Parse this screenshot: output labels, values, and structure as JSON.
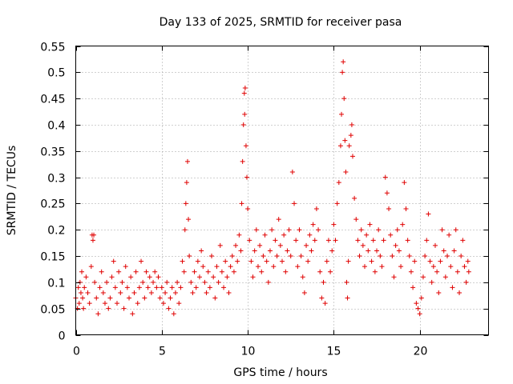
{
  "chart_data": {
    "type": "scatter",
    "title": "Day 133 of 2025, SRMTID for receiver pasa",
    "xlabel": "GPS time / hours",
    "ylabel": "SRMTID / TECUs",
    "xlim": [
      0,
      24
    ],
    "ylim": [
      0,
      0.55
    ],
    "xticks": [
      0,
      5,
      10,
      15,
      20
    ],
    "xtick_labels": [
      "0",
      "5",
      "10",
      "15",
      "20"
    ],
    "yticks": [
      0,
      0.05,
      0.1,
      0.15,
      0.2,
      0.25,
      0.3,
      0.35,
      0.4,
      0.45,
      0.5,
      0.55
    ],
    "ytick_labels": [
      "0",
      "0.05",
      "0.1",
      "0.15",
      "0.2",
      "0.25",
      "0.3",
      "0.35",
      "0.4",
      "0.45",
      "0.5",
      "0.55"
    ],
    "grid": true,
    "marker": "+",
    "series_color": "#e00000",
    "series": [
      {
        "name": "SRMTID",
        "points": [
          [
            0.0,
            0.07
          ],
          [
            0.1,
            0.05
          ],
          [
            0.15,
            0.09
          ],
          [
            0.2,
            0.06
          ],
          [
            0.25,
            0.1
          ],
          [
            0.3,
            0.08
          ],
          [
            0.35,
            0.12
          ],
          [
            0.4,
            0.07
          ],
          [
            0.45,
            0.05
          ],
          [
            0.5,
            0.09
          ],
          [
            0.6,
            0.11
          ],
          [
            0.7,
            0.08
          ],
          [
            0.8,
            0.06
          ],
          [
            0.9,
            0.13
          ],
          [
            0.95,
            0.19
          ],
          [
            1.0,
            0.18
          ],
          [
            1.05,
            0.19
          ],
          [
            1.1,
            0.1
          ],
          [
            1.2,
            0.07
          ],
          [
            1.3,
            0.04
          ],
          [
            1.4,
            0.09
          ],
          [
            1.5,
            0.12
          ],
          [
            1.6,
            0.08
          ],
          [
            1.7,
            0.06
          ],
          [
            1.8,
            0.1
          ],
          [
            1.9,
            0.05
          ],
          [
            2.0,
            0.07
          ],
          [
            2.1,
            0.11
          ],
          [
            2.2,
            0.14
          ],
          [
            2.3,
            0.09
          ],
          [
            2.4,
            0.06
          ],
          [
            2.5,
            0.12
          ],
          [
            2.6,
            0.08
          ],
          [
            2.7,
            0.1
          ],
          [
            2.8,
            0.05
          ],
          [
            2.9,
            0.13
          ],
          [
            3.0,
            0.09
          ],
          [
            3.1,
            0.07
          ],
          [
            3.2,
            0.11
          ],
          [
            3.3,
            0.04
          ],
          [
            3.4,
            0.08
          ],
          [
            3.5,
            0.12
          ],
          [
            3.6,
            0.06
          ],
          [
            3.7,
            0.09
          ],
          [
            3.8,
            0.14
          ],
          [
            3.9,
            0.1
          ],
          [
            4.0,
            0.07
          ],
          [
            4.1,
            0.12
          ],
          [
            4.2,
            0.09
          ],
          [
            4.3,
            0.11
          ],
          [
            4.4,
            0.08
          ],
          [
            4.5,
            0.1
          ],
          [
            4.6,
            0.12
          ],
          [
            4.7,
            0.09
          ],
          [
            4.8,
            0.11
          ],
          [
            4.9,
            0.07
          ],
          [
            5.0,
            0.09
          ],
          [
            5.1,
            0.06
          ],
          [
            5.2,
            0.08
          ],
          [
            5.3,
            0.1
          ],
          [
            5.4,
            0.05
          ],
          [
            5.5,
            0.07
          ],
          [
            5.6,
            0.09
          ],
          [
            5.7,
            0.04
          ],
          [
            5.8,
            0.08
          ],
          [
            5.9,
            0.1
          ],
          [
            6.0,
            0.06
          ],
          [
            6.1,
            0.09
          ],
          [
            6.2,
            0.14
          ],
          [
            6.3,
            0.12
          ],
          [
            6.35,
            0.2
          ],
          [
            6.4,
            0.25
          ],
          [
            6.45,
            0.29
          ],
          [
            6.5,
            0.33
          ],
          [
            6.55,
            0.22
          ],
          [
            6.6,
            0.15
          ],
          [
            6.7,
            0.1
          ],
          [
            6.8,
            0.08
          ],
          [
            6.9,
            0.12
          ],
          [
            7.0,
            0.09
          ],
          [
            7.1,
            0.14
          ],
          [
            7.2,
            0.11
          ],
          [
            7.3,
            0.16
          ],
          [
            7.4,
            0.13
          ],
          [
            7.5,
            0.1
          ],
          [
            7.6,
            0.08
          ],
          [
            7.7,
            0.12
          ],
          [
            7.8,
            0.09
          ],
          [
            7.9,
            0.15
          ],
          [
            8.0,
            0.11
          ],
          [
            8.1,
            0.07
          ],
          [
            8.2,
            0.13
          ],
          [
            8.3,
            0.1
          ],
          [
            8.4,
            0.17
          ],
          [
            8.5,
            0.12
          ],
          [
            8.6,
            0.09
          ],
          [
            8.7,
            0.14
          ],
          [
            8.8,
            0.11
          ],
          [
            8.9,
            0.08
          ],
          [
            9.0,
            0.13
          ],
          [
            9.1,
            0.15
          ],
          [
            9.2,
            0.12
          ],
          [
            9.3,
            0.17
          ],
          [
            9.4,
            0.14
          ],
          [
            9.5,
            0.19
          ],
          [
            9.6,
            0.16
          ],
          [
            9.65,
            0.25
          ],
          [
            9.7,
            0.33
          ],
          [
            9.75,
            0.4
          ],
          [
            9.8,
            0.46
          ],
          [
            9.82,
            0.42
          ],
          [
            9.85,
            0.47
          ],
          [
            9.9,
            0.36
          ],
          [
            9.95,
            0.3
          ],
          [
            10.0,
            0.24
          ],
          [
            10.1,
            0.18
          ],
          [
            10.2,
            0.14
          ],
          [
            10.3,
            0.11
          ],
          [
            10.4,
            0.16
          ],
          [
            10.5,
            0.2
          ],
          [
            10.6,
            0.13
          ],
          [
            10.7,
            0.17
          ],
          [
            10.8,
            0.12
          ],
          [
            10.9,
            0.15
          ],
          [
            11.0,
            0.19
          ],
          [
            11.1,
            0.14
          ],
          [
            11.2,
            0.1
          ],
          [
            11.3,
            0.16
          ],
          [
            11.4,
            0.2
          ],
          [
            11.5,
            0.13
          ],
          [
            11.6,
            0.18
          ],
          [
            11.7,
            0.15
          ],
          [
            11.8,
            0.22
          ],
          [
            11.9,
            0.17
          ],
          [
            12.0,
            0.14
          ],
          [
            12.1,
            0.19
          ],
          [
            12.2,
            0.12
          ],
          [
            12.3,
            0.16
          ],
          [
            12.4,
            0.2
          ],
          [
            12.5,
            0.15
          ],
          [
            12.6,
            0.31
          ],
          [
            12.7,
            0.25
          ],
          [
            12.8,
            0.18
          ],
          [
            12.9,
            0.13
          ],
          [
            13.0,
            0.2
          ],
          [
            13.1,
            0.15
          ],
          [
            13.2,
            0.11
          ],
          [
            13.3,
            0.08
          ],
          [
            13.4,
            0.17
          ],
          [
            13.5,
            0.14
          ],
          [
            13.6,
            0.19
          ],
          [
            13.7,
            0.16
          ],
          [
            13.8,
            0.21
          ],
          [
            13.9,
            0.18
          ],
          [
            14.0,
            0.24
          ],
          [
            14.1,
            0.2
          ],
          [
            14.2,
            0.12
          ],
          [
            14.3,
            0.07
          ],
          [
            14.4,
            0.1
          ],
          [
            14.5,
            0.06
          ],
          [
            14.6,
            0.14
          ],
          [
            14.7,
            0.18
          ],
          [
            14.8,
            0.12
          ],
          [
            14.9,
            0.16
          ],
          [
            15.0,
            0.21
          ],
          [
            15.1,
            0.18
          ],
          [
            15.2,
            0.25
          ],
          [
            15.3,
            0.29
          ],
          [
            15.4,
            0.36
          ],
          [
            15.45,
            0.42
          ],
          [
            15.5,
            0.5
          ],
          [
            15.55,
            0.52
          ],
          [
            15.6,
            0.45
          ],
          [
            15.65,
            0.37
          ],
          [
            15.7,
            0.31
          ],
          [
            15.75,
            0.1
          ],
          [
            15.8,
            0.07
          ],
          [
            15.85,
            0.14
          ],
          [
            15.9,
            0.36
          ],
          [
            16.0,
            0.38
          ],
          [
            16.05,
            0.4
          ],
          [
            16.1,
            0.34
          ],
          [
            16.2,
            0.26
          ],
          [
            16.3,
            0.22
          ],
          [
            16.4,
            0.18
          ],
          [
            16.5,
            0.15
          ],
          [
            16.6,
            0.2
          ],
          [
            16.7,
            0.17
          ],
          [
            16.8,
            0.13
          ],
          [
            16.9,
            0.19
          ],
          [
            17.0,
            0.16
          ],
          [
            17.1,
            0.21
          ],
          [
            17.2,
            0.14
          ],
          [
            17.3,
            0.18
          ],
          [
            17.4,
            0.12
          ],
          [
            17.5,
            0.16
          ],
          [
            17.6,
            0.2
          ],
          [
            17.7,
            0.15
          ],
          [
            17.8,
            0.13
          ],
          [
            17.9,
            0.18
          ],
          [
            18.0,
            0.3
          ],
          [
            18.1,
            0.27
          ],
          [
            18.2,
            0.24
          ],
          [
            18.3,
            0.19
          ],
          [
            18.4,
            0.15
          ],
          [
            18.5,
            0.11
          ],
          [
            18.6,
            0.17
          ],
          [
            18.7,
            0.2
          ],
          [
            18.8,
            0.16
          ],
          [
            18.9,
            0.13
          ],
          [
            19.0,
            0.21
          ],
          [
            19.1,
            0.29
          ],
          [
            19.2,
            0.24
          ],
          [
            19.3,
            0.18
          ],
          [
            19.4,
            0.15
          ],
          [
            19.5,
            0.12
          ],
          [
            19.6,
            0.09
          ],
          [
            19.7,
            0.14
          ],
          [
            19.8,
            0.06
          ],
          [
            19.9,
            0.05
          ],
          [
            20.0,
            0.04
          ],
          [
            20.1,
            0.07
          ],
          [
            20.2,
            0.11
          ],
          [
            20.3,
            0.15
          ],
          [
            20.4,
            0.18
          ],
          [
            20.5,
            0.23
          ],
          [
            20.6,
            0.14
          ],
          [
            20.7,
            0.1
          ],
          [
            20.8,
            0.13
          ],
          [
            20.9,
            0.17
          ],
          [
            21.0,
            0.12
          ],
          [
            21.1,
            0.08
          ],
          [
            21.2,
            0.14
          ],
          [
            21.3,
            0.2
          ],
          [
            21.4,
            0.16
          ],
          [
            21.5,
            0.11
          ],
          [
            21.6,
            0.15
          ],
          [
            21.7,
            0.19
          ],
          [
            21.8,
            0.13
          ],
          [
            21.9,
            0.09
          ],
          [
            22.0,
            0.16
          ],
          [
            22.1,
            0.2
          ],
          [
            22.2,
            0.12
          ],
          [
            22.3,
            0.08
          ],
          [
            22.4,
            0.15
          ],
          [
            22.5,
            0.18
          ],
          [
            22.6,
            0.13
          ],
          [
            22.7,
            0.1
          ],
          [
            22.8,
            0.14
          ],
          [
            22.85,
            0.12
          ]
        ]
      }
    ]
  }
}
